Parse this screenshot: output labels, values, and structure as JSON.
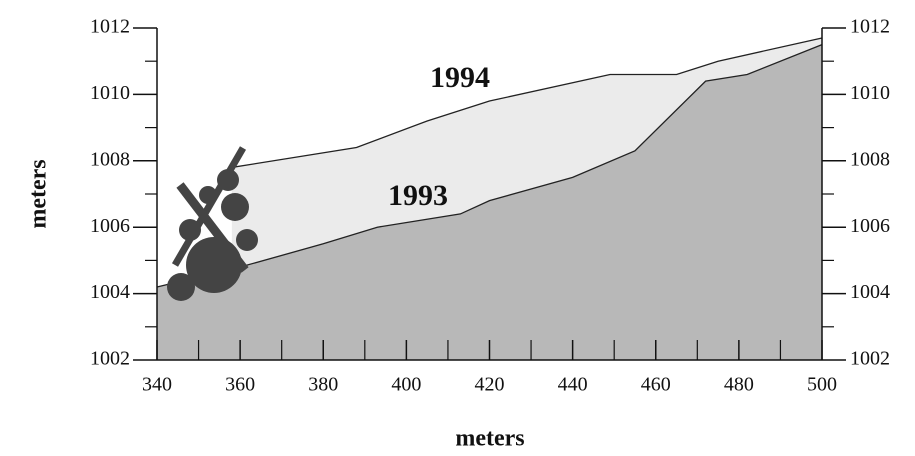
{
  "chart_data": {
    "type": "area",
    "ylabel": "meters",
    "xlabel": "meters",
    "xlim": [
      340,
      500
    ],
    "xticks": [
      340,
      360,
      380,
      400,
      420,
      440,
      460,
      480,
      500
    ],
    "xminorticks": [
      350,
      370,
      390,
      410,
      430,
      450,
      470,
      490
    ],
    "ylim": [
      1002,
      1012
    ],
    "yticks": [
      1002,
      1004,
      1006,
      1008,
      1010,
      1012
    ],
    "yminorticks": [
      1003,
      1005,
      1007,
      1009,
      1011
    ],
    "y2lim": [
      1002,
      1012
    ],
    "y2ticks": [
      1002,
      1004,
      1006,
      1008,
      1010,
      1012
    ],
    "series": [
      {
        "name": "1994",
        "color": "#ebebeb",
        "x": [
          358,
          388,
          405,
          420,
          449,
          465,
          475,
          500
        ],
        "values": [
          1007.8,
          1008.4,
          1009.2,
          1009.8,
          1010.6,
          1010.6,
          1011.0,
          1011.7
        ]
      },
      {
        "name": "1993",
        "color": "#b8b8b8",
        "x": [
          340,
          360,
          380,
          393,
          413,
          420,
          440,
          455,
          472,
          482,
          500
        ],
        "values": [
          1004.2,
          1004.8,
          1005.5,
          1006.0,
          1006.4,
          1006.8,
          1007.5,
          1008.3,
          1010.4,
          1010.6,
          1011.5
        ]
      }
    ]
  }
}
